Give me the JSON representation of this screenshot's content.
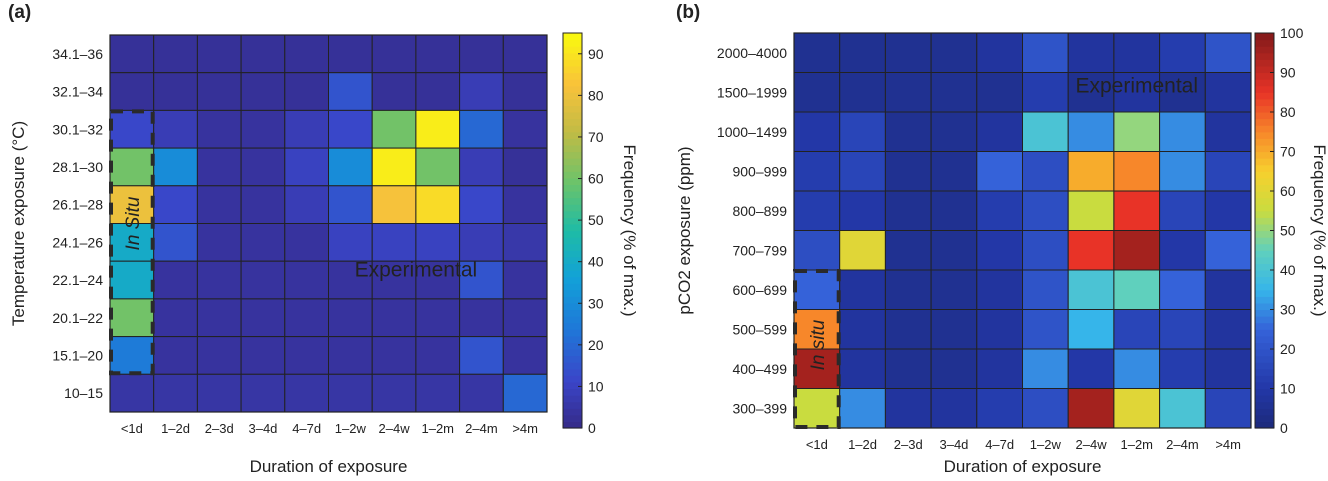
{
  "chart_data": [
    {
      "panel_label": "(a)",
      "type": "heatmap",
      "xlabel": "Duration of exposure",
      "ylabel": "Temperature exposure (°C)",
      "x_categories": [
        "<1d",
        "1–2d",
        "2–3d",
        "3–4d",
        "4–7d",
        "1–2w",
        "2–4w",
        "1–2m",
        "2–4m",
        ">4m"
      ],
      "y_categories": [
        "34.1–36",
        "32.1–34",
        "30.1–32",
        "28.1–30",
        "26.1–28",
        "24.1–26",
        "22.1–24",
        "20.1–22",
        "15.1–20",
        "10–15"
      ],
      "values": [
        [
          3,
          3,
          3,
          3,
          3,
          3,
          3,
          3,
          3,
          3
        ],
        [
          3,
          3,
          3,
          3,
          3,
          15,
          3,
          3,
          8,
          3
        ],
        [
          12,
          8,
          4,
          4,
          8,
          12,
          60,
          92,
          20,
          4
        ],
        [
          60,
          30,
          4,
          4,
          10,
          30,
          92,
          60,
          8,
          3
        ],
        [
          80,
          12,
          4,
          4,
          8,
          15,
          82,
          88,
          12,
          4
        ],
        [
          40,
          15,
          4,
          4,
          4,
          10,
          10,
          10,
          8,
          6
        ],
        [
          40,
          4,
          4,
          4,
          4,
          4,
          4,
          4,
          15,
          4
        ],
        [
          60,
          4,
          4,
          4,
          4,
          4,
          4,
          4,
          4,
          4
        ],
        [
          25,
          4,
          4,
          4,
          4,
          4,
          4,
          4,
          15,
          4
        ],
        [
          5,
          5,
          5,
          5,
          5,
          5,
          5,
          5,
          5,
          20
        ]
      ],
      "colorbar_label": "Frequency (% of max.)",
      "colorbar_ticks": [
        0,
        10,
        20,
        30,
        40,
        50,
        60,
        70,
        80,
        90
      ],
      "colorbar_range": [
        0,
        95
      ],
      "colormap": "parula",
      "annotations": {
        "in_situ": "In Situ",
        "experimental": "Experimental"
      }
    },
    {
      "panel_label": "(b)",
      "type": "heatmap",
      "xlabel": "Duration of exposure",
      "ylabel": "pCO2 exposure (ppm)",
      "x_categories": [
        "<1d",
        "1–2d",
        "2–3d",
        "3–4d",
        "4–7d",
        "1–2w",
        "2–4w",
        "1–2m",
        "2–4m",
        ">4m"
      ],
      "y_categories": [
        "2000–4000",
        "1500–1999",
        "1000–1499",
        "900–999",
        "800–899",
        "700–799",
        "600–699",
        "500–599",
        "400–499",
        "300–399"
      ],
      "values": [
        [
          5,
          5,
          5,
          5,
          8,
          20,
          8,
          8,
          12,
          20
        ],
        [
          5,
          5,
          5,
          5,
          5,
          12,
          5,
          8,
          5,
          8
        ],
        [
          10,
          15,
          5,
          5,
          8,
          40,
          30,
          50,
          30,
          8
        ],
        [
          12,
          15,
          5,
          5,
          25,
          18,
          70,
          75,
          30,
          15
        ],
        [
          12,
          10,
          5,
          5,
          12,
          18,
          55,
          85,
          15,
          10
        ],
        [
          18,
          60,
          5,
          5,
          10,
          18,
          85,
          95,
          10,
          25
        ],
        [
          25,
          8,
          5,
          5,
          8,
          20,
          40,
          45,
          25,
          8
        ],
        [
          75,
          8,
          5,
          5,
          8,
          20,
          35,
          15,
          15,
          8
        ],
        [
          95,
          8,
          5,
          5,
          8,
          30,
          10,
          30,
          12,
          8
        ],
        [
          55,
          30,
          8,
          8,
          12,
          18,
          95,
          60,
          40,
          15
        ]
      ],
      "colorbar_label": "Frequency (% of max.)",
      "colorbar_ticks": [
        0,
        10,
        20,
        30,
        40,
        50,
        60,
        70,
        80,
        90,
        100
      ],
      "colorbar_range": [
        0,
        100
      ],
      "colormap": "jet",
      "annotations": {
        "in_situ": "In situ",
        "experimental": "Experimental"
      }
    }
  ]
}
